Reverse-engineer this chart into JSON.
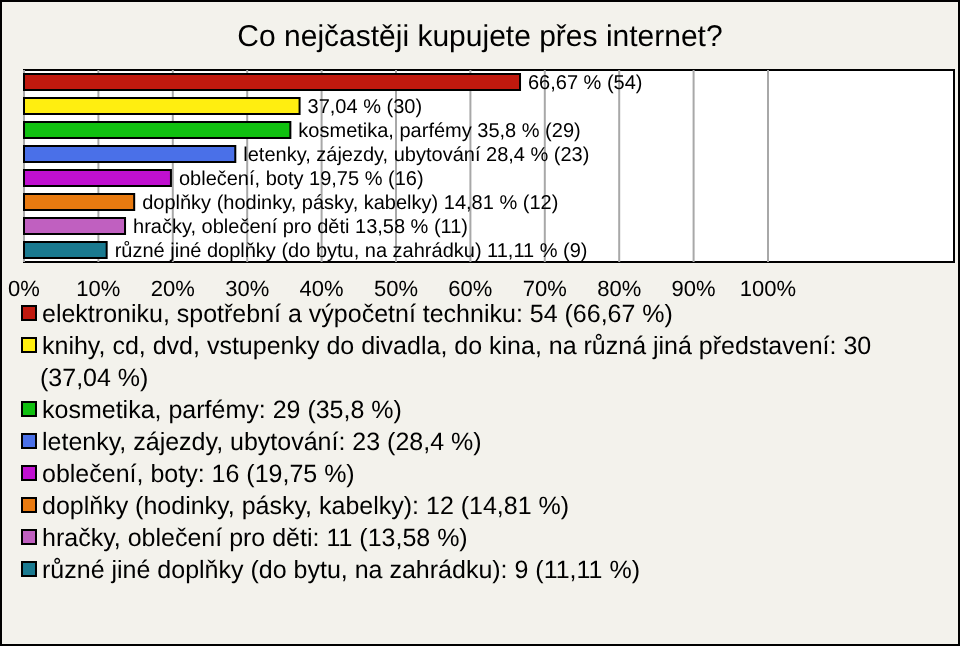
{
  "chart_data": {
    "type": "bar",
    "orientation": "horizontal",
    "stacked": true,
    "title": "Co nejčastěji kupujete přes internet?",
    "categories": [
      null,
      null,
      null,
      null,
      null,
      null,
      null,
      null
    ],
    "series": [
      {
        "name": "elektroniku, spotřební a výpočetní techniku: 54 (66,67 %)",
        "color": "#c0190e",
        "values": [
          66.67,
          null,
          null,
          null,
          null,
          null,
          null,
          null
        ],
        "value_labels": [
          "66,67 % (54)",
          null,
          null,
          null,
          null,
          null,
          null,
          null
        ]
      },
      {
        "name": "knihy, cd, dvd, vstupenky do divadla, do kina, na různá jiná představení: 30 (37,04 %)",
        "color": "#ffee10",
        "values": [
          null,
          37.04,
          null,
          null,
          null,
          null,
          null,
          null
        ],
        "value_labels": [
          null,
          "37,04 % (30)",
          null,
          null,
          null,
          null,
          null,
          null
        ]
      },
      {
        "name": "kosmetika, parfémy: 29 (35,8 %)",
        "color": "#10c010",
        "values": [
          null,
          null,
          35.8,
          null,
          null,
          null,
          null,
          null
        ],
        "value_labels": [
          null,
          null,
          "kosmetika, parfémy 35,8 % (29)",
          null,
          null,
          null,
          null,
          null
        ]
      },
      {
        "name": "letenky, zájezdy, ubytování: 23 (28,4 %)",
        "color": "#4a70e8",
        "values": [
          null,
          null,
          null,
          28.4,
          null,
          null,
          null,
          null
        ],
        "value_labels": [
          null,
          null,
          null,
          "letenky, zájezdy, ubytování 28,4 % (23)",
          null,
          null,
          null,
          null
        ]
      },
      {
        "name": "oblečení, boty: 16 (19,75 %)",
        "color": "#c010d0",
        "values": [
          null,
          null,
          null,
          null,
          19.75,
          null,
          null,
          null
        ],
        "value_labels": [
          null,
          null,
          null,
          null,
          "oblečení, boty 19,75 % (16)",
          null,
          null,
          null
        ]
      },
      {
        "name": "doplňky (hodinky, pásky, kabelky): 12 (14,81 %)",
        "color": "#e87a10",
        "values": [
          null,
          null,
          null,
          null,
          null,
          14.81,
          null,
          null
        ],
        "value_labels": [
          null,
          null,
          null,
          null,
          null,
          "doplňky (hodinky, pásky, kabelky) 14,81 % (12)",
          null,
          null
        ]
      },
      {
        "name": "hračky, oblečení pro děti: 11 (13,58 %)",
        "color": "#c060c0",
        "values": [
          null,
          null,
          null,
          null,
          null,
          null,
          13.58,
          null
        ],
        "value_labels": [
          null,
          null,
          null,
          null,
          null,
          null,
          "hračky, oblečení pro děti 13,58 % (11)",
          null
        ]
      },
      {
        "name": "různé jiné doplňky (do bytu, na zahrádku): 9 (11,11 %)",
        "color": "#1a7a90",
        "values": [
          null,
          null,
          null,
          null,
          null,
          null,
          null,
          11.11
        ],
        "value_labels": [
          null,
          null,
          null,
          null,
          null,
          null,
          null,
          "různé jiné doplňky (do bytu, na zahrádku) 11,11 % (9)"
        ]
      }
    ],
    "xlim": [
      0,
      125
    ],
    "xticks": [
      {
        "value": 0,
        "label": "0%"
      },
      {
        "value": 10,
        "label": "10%"
      },
      {
        "value": 20,
        "label": "20%"
      },
      {
        "value": 30,
        "label": "30%"
      },
      {
        "value": 40,
        "label": "40%"
      },
      {
        "value": 50,
        "label": "50%"
      },
      {
        "value": 60,
        "label": "60%"
      },
      {
        "value": 70,
        "label": "70%"
      },
      {
        "value": 80,
        "label": "80%"
      },
      {
        "value": 90,
        "label": "90%"
      },
      {
        "value": 100,
        "label": "100%"
      }
    ],
    "grid": "x",
    "legend": "bottom",
    "tick_labels": "x"
  }
}
